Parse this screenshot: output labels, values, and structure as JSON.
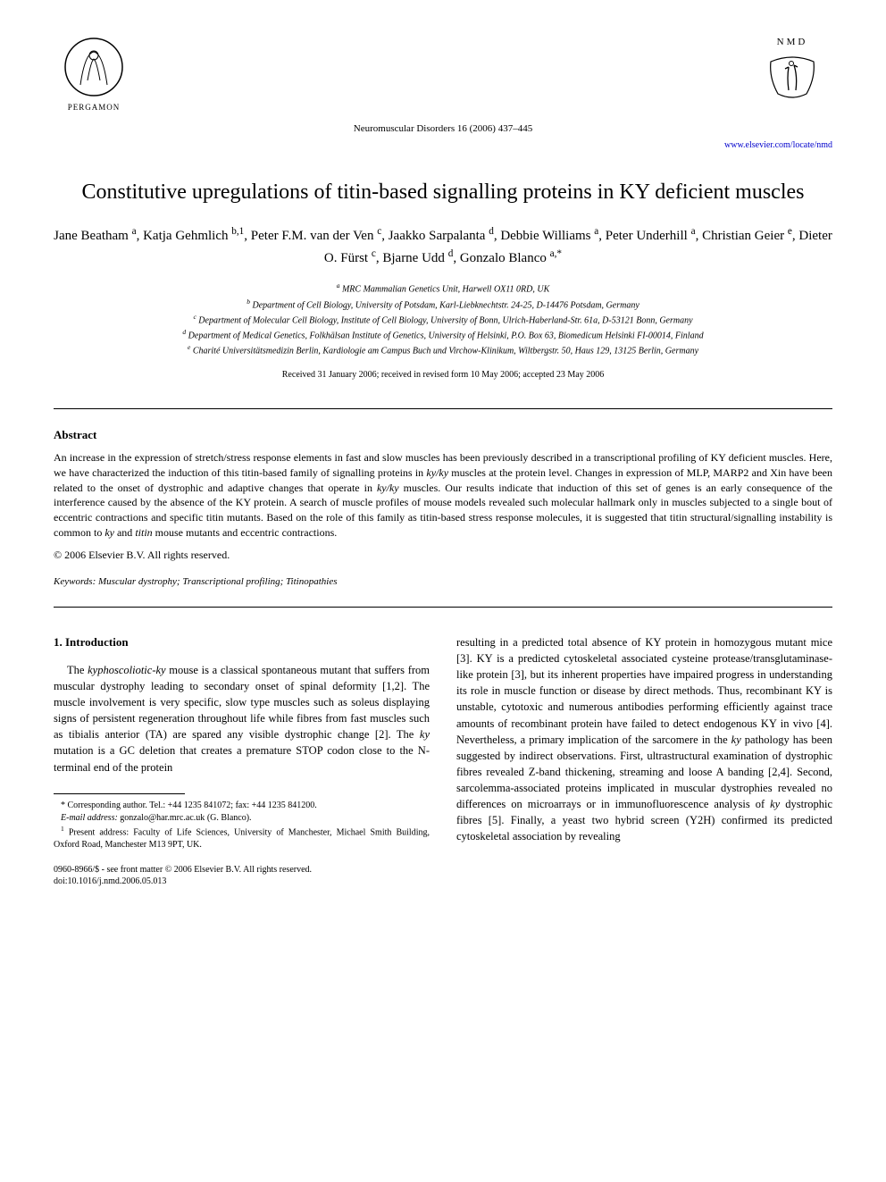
{
  "header": {
    "publisher_logo_label": "PERGAMON",
    "journal_ref": "Neuromuscular Disorders 16 (2006) 437–445",
    "journal_logo_top": "NMD",
    "journal_link": "www.elsevier.com/locate/nmd"
  },
  "title": "Constitutive upregulations of titin-based signalling proteins in KY deficient muscles",
  "authors_html": "Jane Beatham <sup>a</sup>, Katja Gehmlich <sup>b,1</sup>, Peter F.M. van der Ven <sup>c</sup>, Jaakko Sarpalanta <sup>d</sup>, Debbie Williams <sup>a</sup>, Peter Underhill <sup>a</sup>, Christian Geier <sup>e</sup>, Dieter O. Fürst <sup>c</sup>, Bjarne Udd <sup>d</sup>, Gonzalo Blanco <sup>a,*</sup>",
  "affiliations": [
    "<sup>a</sup> MRC Mammalian Genetics Unit, Harwell OX11 0RD, UK",
    "<sup>b</sup> Department of Cell Biology, University of Potsdam, Karl-Liebknechtstr. 24-25, D-14476 Potsdam, Germany",
    "<sup>c</sup> Department of Molecular Cell Biology, Institute of Cell Biology, University of Bonn, Ulrich-Haberland-Str. 61a, D-53121 Bonn, Germany",
    "<sup>d</sup> Department of Medical Genetics, Folkhälsan Institute of Genetics, University of Helsinki, P.O. Box 63, Biomedicum Helsinki FI-00014, Finland",
    "<sup>e</sup> Charité Universitätsmedizin Berlin, Kardiologie am Campus Buch und Virchow-Klinikum, Wiltbergstr. 50, Haus 129, 13125 Berlin, Germany"
  ],
  "dates": "Received 31 January 2006; received in revised form 10 May 2006; accepted 23 May 2006",
  "abstract": {
    "heading": "Abstract",
    "text": "An increase in the expression of stretch/stress response elements in fast and slow muscles has been previously described in a transcriptional profiling of KY deficient muscles. Here, we have characterized the induction of this titin-based family of signalling proteins in <i>ky/ky</i> muscles at the protein level. Changes in expression of MLP, MARP2 and Xin have been related to the onset of dystrophic and adaptive changes that operate in <i>ky/ky</i> muscles. Our results indicate that induction of this set of genes is an early consequence of the interference caused by the absence of the KY protein. A search of muscle profiles of mouse models revealed such molecular hallmark only in muscles subjected to a single bout of eccentric contractions and specific titin mutants. Based on the role of this family as titin-based stress response molecules, it is suggested that titin structural/signalling instability is common to <i>ky</i> and <i>titin</i> mouse mutants and eccentric contractions.",
    "copyright": "© 2006 Elsevier B.V. All rights reserved."
  },
  "keywords": {
    "label": "Keywords:",
    "text": "Muscular dystrophy; Transcriptional profiling; Titinopathies"
  },
  "intro": {
    "heading": "1. Introduction",
    "col1": "The <i>kyphoscoliotic-ky</i> mouse is a classical spontaneous mutant that suffers from muscular dystrophy leading to secondary onset of spinal deformity [1,2]. The muscle involvement is very specific, slow type muscles such as soleus displaying signs of persistent regeneration throughout life while fibres from fast muscles such as tibialis anterior (TA) are spared any visible dystrophic change [2]. The <i>ky</i> mutation is a GC deletion that creates a premature STOP codon close to the N-terminal end of the protein",
    "col2": "resulting in a predicted total absence of KY protein in homozygous mutant mice [3]. KY is a predicted cytoskeletal associated cysteine protease/transglutaminase-like protein [3], but its inherent properties have impaired progress in understanding its role in muscle function or disease by direct methods. Thus, recombinant KY is unstable, cytotoxic and numerous antibodies performing efficiently against trace amounts of recombinant protein have failed to detect endogenous KY in vivo [4]. Nevertheless, a primary implication of the sarcomere in the <i>ky</i> pathology has been suggested by indirect observations. First, ultrastructural examination of dystrophic fibres revealed Z-band thickening, streaming and loose A banding [2,4]. Second, sarcolemma-associated proteins implicated in muscular dystrophies revealed no differences on microarrays or in immunofluorescence analysis of <i>ky</i> dystrophic fibres [5]. Finally, a yeast two hybrid screen (Y2H) confirmed its predicted cytoskeletal association by revealing"
  },
  "footnotes": {
    "corresponding": "* Corresponding author. Tel.: +44 1235 841072; fax: +44 1235 841200.",
    "email_label": "E-mail address:",
    "email": "gonzalo@har.mrc.ac.uk",
    "email_person": "(G. Blanco).",
    "present_addr": "<sup>1</sup> Present address: Faculty of Life Sciences, University of Manchester, Michael Smith Building, Oxford Road, Manchester M13 9PT, UK."
  },
  "footer": {
    "issn_line": "0960-8966/$ - see front matter © 2006 Elsevier B.V. All rights reserved.",
    "doi_line": "doi:10.1016/j.nmd.2006.05.013"
  },
  "colors": {
    "text": "#000000",
    "background": "#ffffff",
    "link": "#0000cc"
  }
}
